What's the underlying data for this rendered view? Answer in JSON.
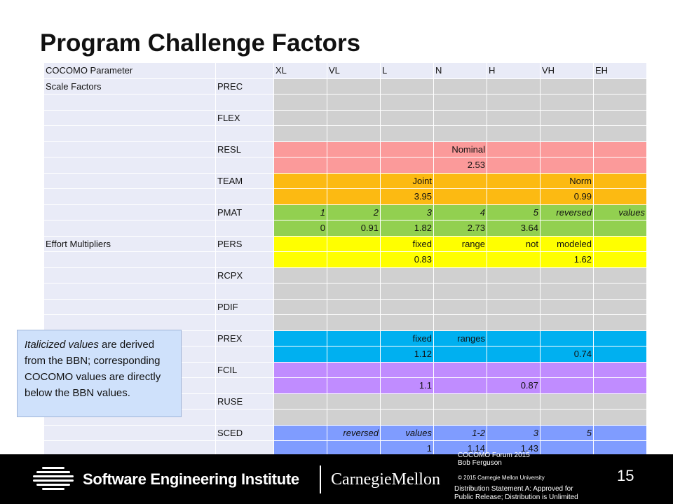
{
  "slide": {
    "title": "Program Challenge Factors",
    "note": {
      "lead": "Italicized values",
      "rest": " are derived from the BBN; corresponding COCOMO values are directly below the BBN values."
    },
    "page_number": "15"
  },
  "footer": {
    "sei_name": "Software Engineering Institute",
    "cmu_name": "CarnegieMellon",
    "meta_line1": "COCOMO Forum 2015",
    "meta_line2": "Bob Ferguson",
    "copyright": "© 2015 Carnegie Mellon University",
    "distribution_line1": "Distribution Statement A: Approved for",
    "distribution_line2": "Public Release; Distribution is Unlimited"
  },
  "table": {
    "header": [
      "COCOMO  Parameter",
      "",
      "XL",
      "VL",
      "L",
      "N",
      "H",
      "VH",
      "EH"
    ],
    "rows": [
      {
        "color": "#d0d0d0",
        "cells": [
          "Scale Factors",
          "PREC",
          "",
          "",
          "",
          "",
          "",
          "",
          ""
        ]
      },
      {
        "color": "#d0d0d0",
        "cells": [
          "",
          "",
          "",
          "",
          "",
          "",
          "",
          "",
          ""
        ]
      },
      {
        "color": "#d0d0d0",
        "cells": [
          "",
          "FLEX",
          "",
          "",
          "",
          "",
          "",
          "",
          ""
        ]
      },
      {
        "color": "#d0d0d0",
        "cells": [
          "",
          "",
          "",
          "",
          "",
          "",
          "",
          "",
          ""
        ]
      },
      {
        "color": "#fb9a9a",
        "cells": [
          "",
          "RESL",
          "",
          "",
          "",
          "Nominal",
          "",
          "",
          ""
        ]
      },
      {
        "color": "#fb9a9a",
        "cells": [
          "",
          "",
          "",
          "",
          "",
          "2.53",
          "",
          "",
          ""
        ]
      },
      {
        "color": "#fcba12",
        "cells": [
          "",
          "TEAM",
          "",
          "",
          "Joint",
          "",
          "",
          "Norm",
          ""
        ]
      },
      {
        "color": "#fcba12",
        "cells": [
          "",
          "",
          "",
          "",
          "3.95",
          "",
          "",
          "0.99",
          ""
        ]
      },
      {
        "color": "#92d050",
        "italic": true,
        "cells": [
          "",
          "PMAT",
          "1",
          "2",
          "3",
          "4",
          "5",
          "reversed",
          "values"
        ]
      },
      {
        "color": "#92d050",
        "cells": [
          "",
          "",
          "0",
          "0.91",
          "1.82",
          "2.73",
          "3.64",
          "",
          ""
        ]
      },
      {
        "color": "#ffff00",
        "cells": [
          "Effort Multipliers",
          "PERS",
          "",
          "",
          "fixed",
          "range",
          "not",
          "modeled",
          ""
        ]
      },
      {
        "color": "#ffff00",
        "cells": [
          "",
          "",
          "",
          "",
          "0.83",
          "",
          "",
          "1.62",
          ""
        ]
      },
      {
        "color": "#d0d0d0",
        "cells": [
          "",
          "RCPX",
          "",
          "",
          "",
          "",
          "",
          "",
          ""
        ]
      },
      {
        "color": "#d0d0d0",
        "cells": [
          "",
          "",
          "",
          "",
          "",
          "",
          "",
          "",
          ""
        ]
      },
      {
        "color": "#d0d0d0",
        "cells": [
          "",
          "PDIF",
          "",
          "",
          "",
          "",
          "",
          "",
          ""
        ]
      },
      {
        "color": "#d0d0d0",
        "cells": [
          "",
          "",
          "",
          "",
          "",
          "",
          "",
          "",
          ""
        ]
      },
      {
        "color": "#00b0f0",
        "cells": [
          "",
          "PREX",
          "",
          "",
          "fixed",
          "ranges",
          "",
          "",
          ""
        ]
      },
      {
        "color": "#00b0f0",
        "cells": [
          "",
          "",
          "",
          "",
          "1.12",
          "",
          "",
          "0.74",
          ""
        ]
      },
      {
        "color": "#c08cff",
        "cells": [
          "",
          "FCIL",
          "",
          "",
          "",
          "",
          "",
          "",
          ""
        ]
      },
      {
        "color": "#c08cff",
        "cells": [
          "",
          "",
          "",
          "",
          "1.1",
          "",
          "0.87",
          "",
          ""
        ]
      },
      {
        "color": "#d0d0d0",
        "cells": [
          "",
          "RUSE",
          "",
          "",
          "",
          "",
          "",
          "",
          ""
        ]
      },
      {
        "color": "#d0d0d0",
        "cells": [
          "",
          "",
          "",
          "",
          "",
          "",
          "",
          "",
          ""
        ]
      },
      {
        "color": "#7f9cff",
        "italic": true,
        "cells": [
          "",
          "SCED",
          "",
          "reversed",
          "values",
          "1-2",
          "3",
          "5",
          ""
        ]
      },
      {
        "color": "#7f9cff",
        "cells": [
          "",
          "",
          "",
          "",
          "1",
          "1.14",
          "1.43",
          "",
          ""
        ]
      }
    ]
  }
}
